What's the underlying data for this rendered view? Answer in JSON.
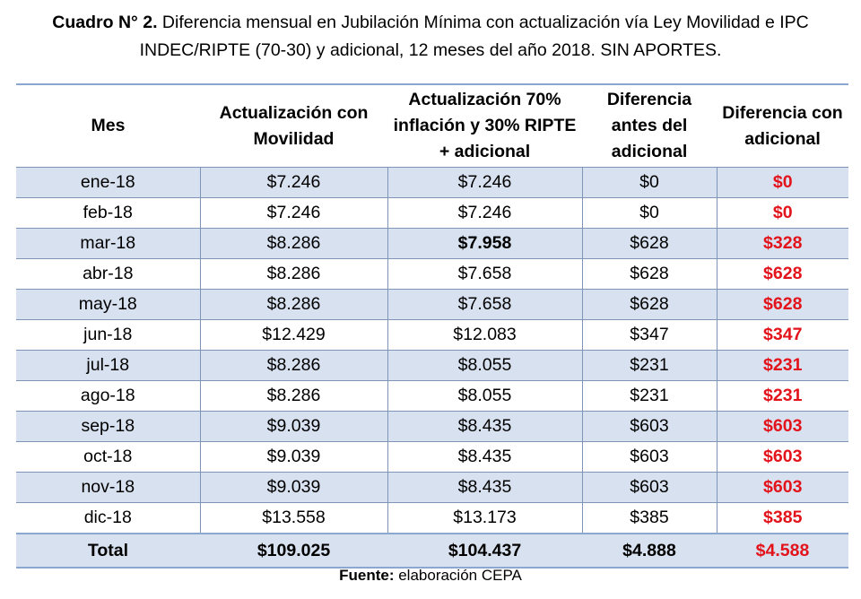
{
  "caption": {
    "label": "Cuadro N° 2.",
    "line1": " Diferencia mensual en Jubilación Mínima con actualización vía Ley Movilidad e IPC",
    "line2": "INDEC/RIPTE (70-30) y adicional, 12 meses del año 2018. SIN APORTES."
  },
  "table": {
    "headers": [
      "Mes",
      "Actualización con Movilidad",
      "Actualización 70% inflación y 30% RIPTE + adicional",
      "Diferencia antes del adicional",
      "Diferencia con adicional"
    ],
    "rows": [
      {
        "mes": "ene-18",
        "movilidad": "$7.246",
        "actualizacion": "$7.246",
        "dif_antes": "$0",
        "dif_con": "$0"
      },
      {
        "mes": "feb-18",
        "movilidad": "$7.246",
        "actualizacion": "$7.246",
        "dif_antes": "$0",
        "dif_con": "$0"
      },
      {
        "mes": "mar-18",
        "movilidad": "$8.286",
        "actualizacion": "$7.958",
        "dif_antes": "$628",
        "dif_con": "$328"
      },
      {
        "mes": "abr-18",
        "movilidad": "$8.286",
        "actualizacion": "$7.658",
        "dif_antes": "$628",
        "dif_con": "$628"
      },
      {
        "mes": "may-18",
        "movilidad": "$8.286",
        "actualizacion": "$7.658",
        "dif_antes": "$628",
        "dif_con": "$628"
      },
      {
        "mes": "jun-18",
        "movilidad": "$12.429",
        "actualizacion": "$12.083",
        "dif_antes": "$347",
        "dif_con": "$347"
      },
      {
        "mes": "jul-18",
        "movilidad": "$8.286",
        "actualizacion": "$8.055",
        "dif_antes": "$231",
        "dif_con": "$231"
      },
      {
        "mes": "ago-18",
        "movilidad": "$8.286",
        "actualizacion": "$8.055",
        "dif_antes": "$231",
        "dif_con": "$231"
      },
      {
        "mes": "sep-18",
        "movilidad": "$9.039",
        "actualizacion": "$8.435",
        "dif_antes": "$603",
        "dif_con": "$603"
      },
      {
        "mes": "oct-18",
        "movilidad": "$9.039",
        "actualizacion": "$8.435",
        "dif_antes": "$603",
        "dif_con": "$603"
      },
      {
        "mes": "nov-18",
        "movilidad": "$9.039",
        "actualizacion": "$8.435",
        "dif_antes": "$603",
        "dif_con": "$603"
      },
      {
        "mes": "dic-18",
        "movilidad": "$13.558",
        "actualizacion": "$13.173",
        "dif_antes": "$385",
        "dif_con": "$385"
      }
    ],
    "total": {
      "mes": "Total",
      "movilidad": "$109.025",
      "actualizacion": "$104.437",
      "dif_antes": "$4.888",
      "dif_con": "$4.588"
    }
  },
  "source": {
    "label": "Fuente:",
    "text": " elaboración CEPA"
  },
  "colors": {
    "accent_red": "#e3131b",
    "row_shade": "#d8e1ef",
    "border_blue": "#8aa7cf"
  }
}
